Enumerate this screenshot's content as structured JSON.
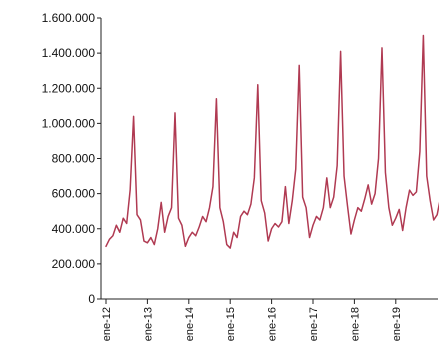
{
  "chart_data": {
    "type": "line",
    "title": "",
    "xlabel": "",
    "ylabel": "",
    "ylim": [
      0,
      1600000
    ],
    "yticks": [
      {
        "value": 0,
        "label": "0"
      },
      {
        "value": 200000,
        "label": "200.000"
      },
      {
        "value": 400000,
        "label": "400.000"
      },
      {
        "value": 600000,
        "label": "600.000"
      },
      {
        "value": 800000,
        "label": "800.000"
      },
      {
        "value": 1000000,
        "label": "1.000.000"
      },
      {
        "value": 1200000,
        "label": "1.200.000"
      },
      {
        "value": 1400000,
        "label": "1.400.000"
      },
      {
        "value": 1600000,
        "label": "1.600.000"
      }
    ],
    "xticks": [
      "ene-12",
      "ene-13",
      "ene-14",
      "ene-15",
      "ene-16",
      "ene-17",
      "ene-18",
      "ene-19"
    ],
    "grid": false,
    "line_color": "#b03a52",
    "series": [
      {
        "start": "ene-12",
        "frequency": "monthly",
        "values": [
          300000,
          340000,
          360000,
          420000,
          380000,
          460000,
          430000,
          620000,
          1040000,
          480000,
          450000,
          330000,
          320000,
          350000,
          310000,
          400000,
          550000,
          380000,
          470000,
          520000,
          1060000,
          460000,
          420000,
          300000,
          350000,
          380000,
          360000,
          410000,
          470000,
          440000,
          520000,
          640000,
          1140000,
          520000,
          440000,
          310000,
          290000,
          380000,
          350000,
          470000,
          500000,
          480000,
          540000,
          690000,
          1220000,
          560000,
          490000,
          330000,
          400000,
          430000,
          410000,
          440000,
          640000,
          430000,
          560000,
          740000,
          1330000,
          580000,
          520000,
          350000,
          420000,
          470000,
          450000,
          520000,
          690000,
          520000,
          580000,
          760000,
          1410000,
          700000,
          530000,
          370000,
          450000,
          520000,
          500000,
          570000,
          650000,
          540000,
          600000,
          800000,
          1430000,
          720000,
          520000,
          420000,
          460000,
          510000,
          390000,
          520000,
          620000,
          590000,
          610000,
          840000,
          1500000,
          700000,
          560000,
          450000,
          480000,
          580000
        ]
      }
    ]
  }
}
